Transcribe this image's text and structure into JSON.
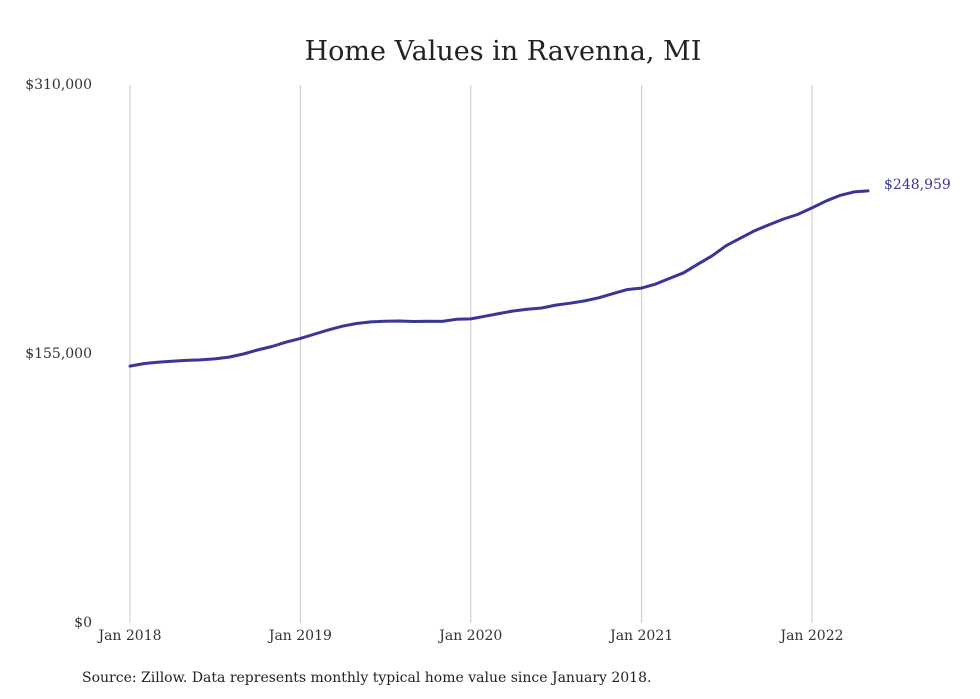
{
  "chart_data": {
    "type": "line",
    "title": "Home Values in Ravenna, MI",
    "xlabel": "",
    "ylabel": "",
    "ylim": [
      0,
      310000
    ],
    "y_ticks": [
      {
        "value": 310000,
        "label": "$310,000"
      },
      {
        "value": 155000,
        "label": "$155,000"
      },
      {
        "value": 0,
        "label": "$0"
      }
    ],
    "x_ticks": [
      {
        "value": "2018-01",
        "label": "Jan 2018"
      },
      {
        "value": "2019-01",
        "label": "Jan 2019"
      },
      {
        "value": "2020-01",
        "label": "Jan 2020"
      },
      {
        "value": "2021-01",
        "label": "Jan 2021"
      },
      {
        "value": "2022-01",
        "label": "Jan 2022"
      }
    ],
    "grid": {
      "vertical": true,
      "horizontal": false
    },
    "series": [
      {
        "color": "#3a3596",
        "x": [
          "2018-01",
          "2018-02",
          "2018-03",
          "2018-04",
          "2018-05",
          "2018-06",
          "2018-07",
          "2018-08",
          "2018-09",
          "2018-10",
          "2018-11",
          "2018-12",
          "2019-01",
          "2019-02",
          "2019-03",
          "2019-04",
          "2019-05",
          "2019-06",
          "2019-07",
          "2019-08",
          "2019-09",
          "2019-10",
          "2019-11",
          "2019-12",
          "2020-01",
          "2020-02",
          "2020-03",
          "2020-04",
          "2020-05",
          "2020-06",
          "2020-07",
          "2020-08",
          "2020-09",
          "2020-10",
          "2020-11",
          "2020-12",
          "2021-01",
          "2021-02",
          "2021-03",
          "2021-04",
          "2021-05",
          "2021-06",
          "2021-07",
          "2021-08",
          "2021-09",
          "2021-10",
          "2021-11",
          "2021-12",
          "2022-01",
          "2022-02",
          "2022-03",
          "2022-04",
          "2022-05"
        ],
        "values": [
          148000,
          149500,
          150300,
          150800,
          151300,
          151600,
          152200,
          153200,
          155000,
          157300,
          159300,
          161800,
          164000,
          166500,
          168800,
          171000,
          172600,
          173500,
          173900,
          174000,
          173700,
          173900,
          173800,
          175000,
          175200,
          176800,
          178300,
          179800,
          180800,
          181500,
          183200,
          184300,
          185600,
          187400,
          189800,
          192100,
          193000,
          195400,
          198500,
          201800,
          206700,
          211600,
          217400,
          221800,
          226100,
          229500,
          232800,
          235400,
          239200,
          243300,
          246300,
          248400,
          248959
        ]
      }
    ],
    "end_label": "$248,959"
  },
  "source_note": "Source: Zillow. Data represents monthly typical home value since January 2018."
}
